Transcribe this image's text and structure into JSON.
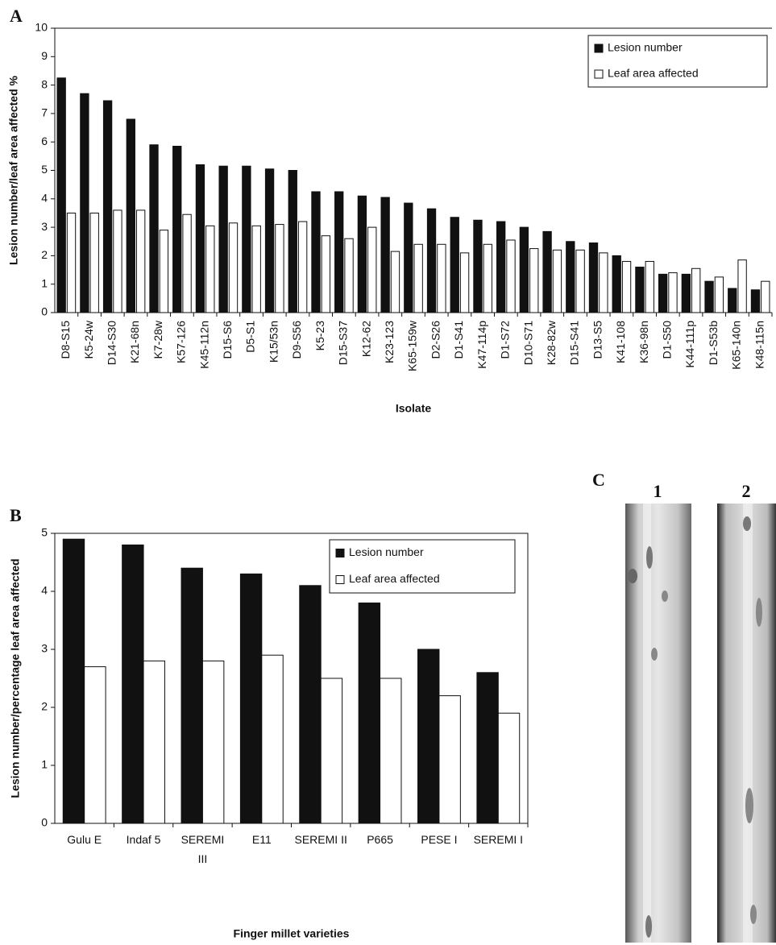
{
  "chart_data": [
    {
      "type": "bar",
      "panel": "A",
      "x_label": "Isolate",
      "y_label": "Lesion number/leaf area affected %",
      "categories": [
        "D8-S15",
        "K5-24w",
        "D14-S30",
        "K21-68n",
        "K7-28w",
        "K57-126",
        "K45-112n",
        "D15-S6",
        "D5-S1",
        "K15/53n",
        "D9-S56",
        "K5-23",
        "D15-S37",
        "K12-62",
        "K23-123",
        "K65-159w",
        "D2-S26",
        "D1-S41",
        "K47-114p",
        "D1-S72",
        "D10-S71",
        "K28-82w",
        "D15-S41",
        "D13-S5",
        "K41-108",
        "K36-98n",
        "D1-S50",
        "K44-111p",
        "D1-S53b",
        "K65-140n",
        "K48-115n"
      ],
      "series": [
        {
          "name": "Lesion number",
          "color": "#111111",
          "values": [
            8.25,
            7.7,
            7.45,
            6.8,
            5.9,
            5.85,
            5.2,
            5.15,
            5.15,
            5.05,
            5.0,
            4.25,
            4.25,
            4.1,
            4.05,
            3.85,
            3.65,
            3.35,
            3.25,
            3.2,
            3.0,
            2.85,
            2.5,
            2.45,
            2.0,
            1.6,
            1.35,
            1.35,
            1.1,
            0.85,
            0.8
          ]
        },
        {
          "name": "Leaf area affected",
          "color": "#ffffff",
          "values": [
            3.5,
            3.5,
            3.6,
            3.6,
            2.9,
            3.45,
            3.05,
            3.15,
            3.05,
            3.1,
            3.2,
            2.7,
            2.6,
            3.0,
            2.15,
            2.4,
            2.4,
            2.1,
            2.4,
            2.55,
            2.25,
            2.2,
            2.2,
            2.1,
            1.8,
            1.8,
            1.4,
            1.55,
            1.25,
            1.85,
            1.1
          ]
        }
      ],
      "ylim": [
        0,
        10
      ],
      "yticks": [
        0,
        1,
        2,
        3,
        4,
        5,
        6,
        7,
        8,
        9,
        10
      ],
      "legend": "upper right",
      "frame": false
    },
    {
      "type": "bar",
      "panel": "B",
      "x_label": "Finger millet varieties",
      "y_label": "Lesion number/percentage leaf area affected",
      "categories": [
        "Gulu E",
        "Indaf 5",
        "SEREMI III",
        "E11",
        "SEREMI II",
        "P665",
        "PESE I",
        "SEREMI I"
      ],
      "series": [
        {
          "name": "Lesion number",
          "color": "#111111",
          "values": [
            4.9,
            4.8,
            4.4,
            4.3,
            4.1,
            3.8,
            3.0,
            2.6
          ]
        },
        {
          "name": "Leaf area affected",
          "color": "#ffffff",
          "values": [
            2.7,
            2.8,
            2.8,
            2.9,
            2.5,
            2.5,
            2.2,
            1.9
          ]
        }
      ],
      "ylim": [
        0,
        5
      ],
      "yticks": [
        0,
        1,
        2,
        3,
        4,
        5
      ],
      "legend": "upper right",
      "frame": true
    }
  ],
  "photo_panel": {
    "label": "C",
    "images": [
      "1",
      "2"
    ]
  }
}
